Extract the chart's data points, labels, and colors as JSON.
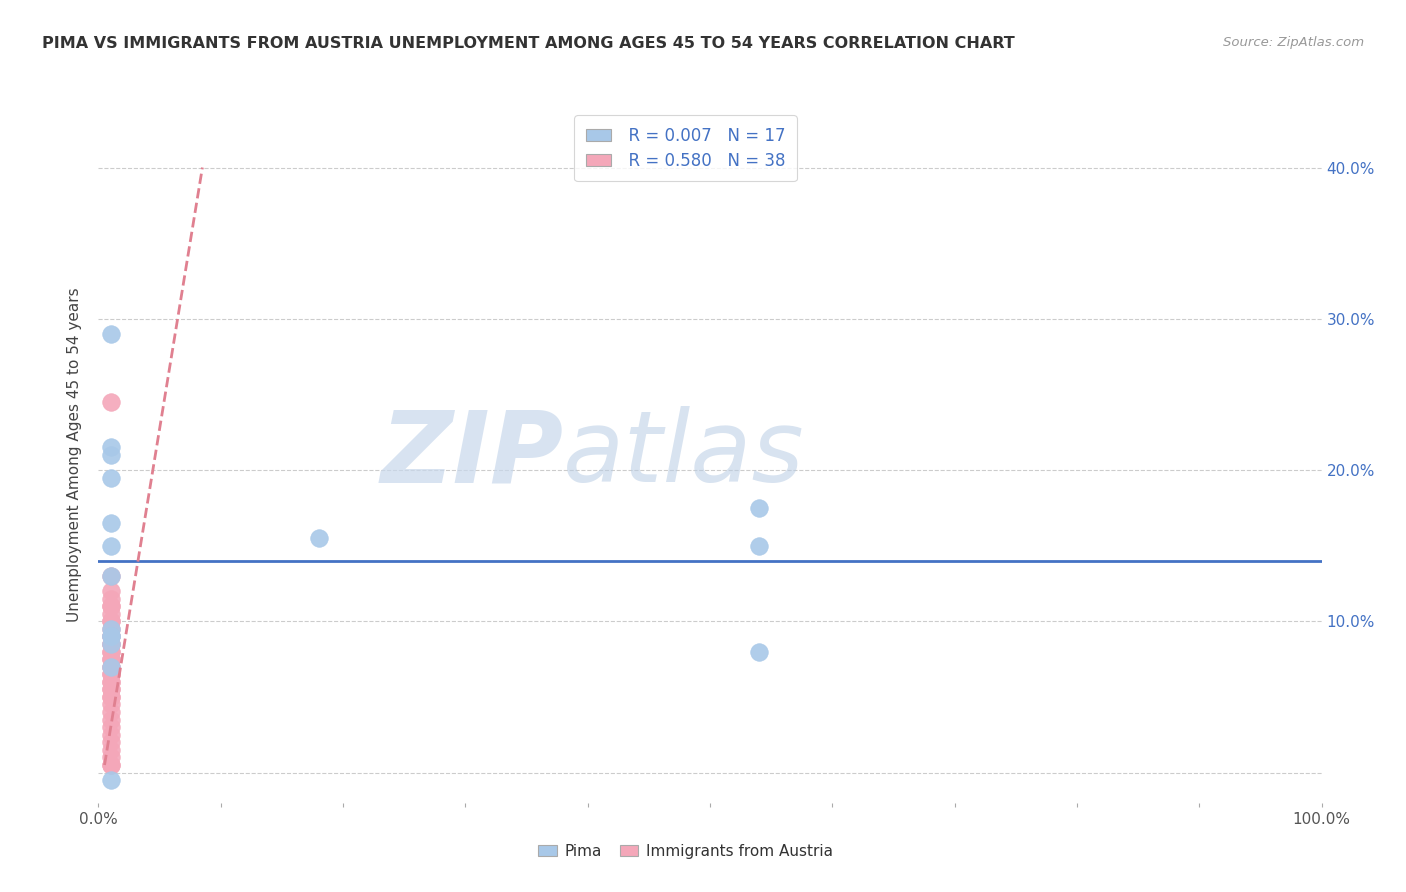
{
  "title": "PIMA VS IMMIGRANTS FROM AUSTRIA UNEMPLOYMENT AMONG AGES 45 TO 54 YEARS CORRELATION CHART",
  "source": "Source: ZipAtlas.com",
  "ylabel": "Unemployment Among Ages 45 to 54 years",
  "xlim": [
    0,
    1.0
  ],
  "ylim": [
    -0.02,
    0.44
  ],
  "legend_r1": "R = 0.007",
  "legend_n1": "N = 17",
  "legend_r2": "R = 0.580",
  "legend_n2": "N = 38",
  "blue_color": "#A8C8E8",
  "pink_color": "#F4A7B9",
  "trend_blue": "#4472C4",
  "trend_pink": "#E08090",
  "watermark_zip": "ZIP",
  "watermark_atlas": "atlas",
  "bg_color": "#FFFFFF",
  "grid_color": "#CCCCCC",
  "blue_x": [
    0.01,
    0.01,
    0.01,
    0.01,
    0.01,
    0.18,
    0.01,
    0.01,
    0.01,
    0.01,
    0.54,
    0.54,
    0.54,
    0.01,
    0.01,
    0.01,
    0.01
  ],
  "blue_y": [
    0.29,
    0.215,
    0.21,
    0.195,
    0.165,
    0.155,
    0.15,
    0.13,
    0.095,
    0.09,
    0.175,
    0.15,
    0.08,
    0.09,
    0.085,
    0.07,
    -0.005
  ],
  "pink_x": [
    0.01,
    0.01,
    0.01,
    0.01,
    0.01,
    0.01,
    0.01,
    0.01,
    0.01,
    0.01,
    0.01,
    0.01,
    0.01,
    0.01,
    0.01,
    0.01,
    0.01,
    0.01,
    0.01,
    0.01,
    0.01,
    0.01,
    0.01,
    0.01,
    0.01,
    0.01,
    0.01,
    0.01,
    0.01,
    0.01,
    0.01,
    0.01,
    0.01,
    0.01,
    0.01,
    0.01,
    0.01,
    0.01
  ],
  "pink_y": [
    0.245,
    0.13,
    0.12,
    0.115,
    0.11,
    0.11,
    0.105,
    0.1,
    0.1,
    0.095,
    0.09,
    0.09,
    0.085,
    0.085,
    0.08,
    0.08,
    0.075,
    0.075,
    0.07,
    0.07,
    0.065,
    0.065,
    0.06,
    0.06,
    0.055,
    0.055,
    0.05,
    0.05,
    0.045,
    0.04,
    0.035,
    0.03,
    0.025,
    0.02,
    0.015,
    0.01,
    0.005,
    0.005
  ],
  "blue_trend_x": [
    0.0,
    1.0
  ],
  "blue_trend_y": [
    0.14,
    0.14
  ],
  "pink_trend_x1": 0.005,
  "pink_trend_y1": 0.005,
  "pink_trend_x2": 0.085,
  "pink_trend_y2": 0.4,
  "fig_width": 14.06,
  "fig_height": 8.92,
  "dpi": 100
}
